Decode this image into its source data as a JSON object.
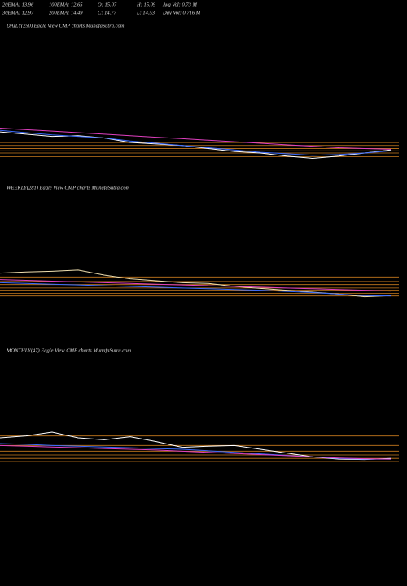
{
  "header": {
    "row1": [
      "20EMA: 13.96",
      "100EMA: 12.65",
      "O: 15.07",
      "H: 15.09",
      "Avg Vol: 0.73  M"
    ],
    "row2": [
      "30EMA: 12.97",
      "200EMA: 14.49",
      "C: 14.77",
      "L: 14.53",
      "Day Vol: 0.716  M"
    ]
  },
  "chart_data": [
    {
      "type": "line",
      "title": "DAILY(250) Eagle  View  CMP charts MunafaSutra.com",
      "ylim": [
        10,
        30
      ],
      "levels": [
        13.5,
        14.0,
        14.3,
        14.6,
        15.0,
        15.4,
        16.0
      ],
      "level_color": "#c87a1e",
      "series": [
        {
          "name": "price",
          "color": "#ffffff",
          "values": [
            16.8,
            16.5,
            16.2,
            16.3,
            16.0,
            15.4,
            15.2,
            15.0,
            14.6,
            14.2,
            14.0,
            13.6,
            13.3,
            13.6,
            14.0,
            14.4
          ]
        },
        {
          "name": "20EMA",
          "color": "#3a6bff",
          "values": [
            17.0,
            16.7,
            16.4,
            16.2,
            16.0,
            15.6,
            15.3,
            15.0,
            14.7,
            14.4,
            14.1,
            13.9,
            13.7,
            13.8,
            14.0,
            14.3
          ]
        },
        {
          "name": "200EMA",
          "color": "#e040c0",
          "values": [
            17.3,
            17.1,
            16.9,
            16.7,
            16.5,
            16.3,
            16.1,
            15.9,
            15.7,
            15.5,
            15.3,
            15.1,
            14.9,
            14.7,
            14.6,
            14.5
          ]
        }
      ]
    },
    {
      "type": "line",
      "title": "WEEKLY(281) Eagle  View  CMP charts MunafaSutra.com",
      "ylim": [
        10,
        40
      ],
      "levels": [
        13.5,
        14.2,
        15.0,
        15.6,
        16.5,
        17.3,
        18.5
      ],
      "level_color": "#c87a1e",
      "series": [
        {
          "name": "price",
          "color": "#f0e0b0",
          "values": [
            19.5,
            19.8,
            20.0,
            20.3,
            19.0,
            18.0,
            17.5,
            17.0,
            16.8,
            16.0,
            15.5,
            15.0,
            14.5,
            14.0,
            13.3,
            13.6
          ]
        },
        {
          "name": "20EMA",
          "color": "#3a6bff",
          "values": [
            17.0,
            16.8,
            16.6,
            16.4,
            16.2,
            16.0,
            15.8,
            15.6,
            15.4,
            15.2,
            15.0,
            14.7,
            14.4,
            14.0,
            13.6,
            13.5
          ]
        },
        {
          "name": "200EMA",
          "color": "#e040c0",
          "values": [
            17.8,
            17.6,
            17.4,
            17.2,
            17.0,
            16.8,
            16.6,
            16.4,
            16.2,
            16.0,
            15.8,
            15.6,
            15.4,
            15.2,
            15.0,
            14.8
          ]
        }
      ]
    },
    {
      "type": "line",
      "title": "MONTHLY(47) Eagle  View  CMP charts MunafaSutra.com",
      "ylim": [
        10,
        40
      ],
      "levels": [
        12.8,
        13.6,
        14.5,
        15.5,
        17.0,
        19.5
      ],
      "level_color": "#c87a1e",
      "series": [
        {
          "name": "price",
          "color": "#ffffff",
          "values": [
            19.0,
            19.5,
            20.5,
            19.0,
            18.5,
            19.3,
            18.0,
            16.5,
            16.8,
            17.0,
            16.0,
            15.0,
            14.0,
            13.4,
            13.3,
            13.6
          ]
        },
        {
          "name": "20EMA",
          "color": "#3a6bff",
          "values": [
            17.5,
            17.3,
            17.0,
            16.8,
            16.6,
            16.4,
            16.2,
            16.0,
            15.6,
            15.2,
            14.8,
            14.4,
            14.0,
            13.6,
            13.4,
            13.4
          ]
        },
        {
          "name": "200EMA",
          "color": "#e040c0",
          "values": [
            17.0,
            16.8,
            16.6,
            16.4,
            16.2,
            16.0,
            15.8,
            15.5,
            15.2,
            14.9,
            14.6,
            14.3,
            14.0,
            13.7,
            13.5,
            13.4
          ]
        }
      ]
    }
  ]
}
